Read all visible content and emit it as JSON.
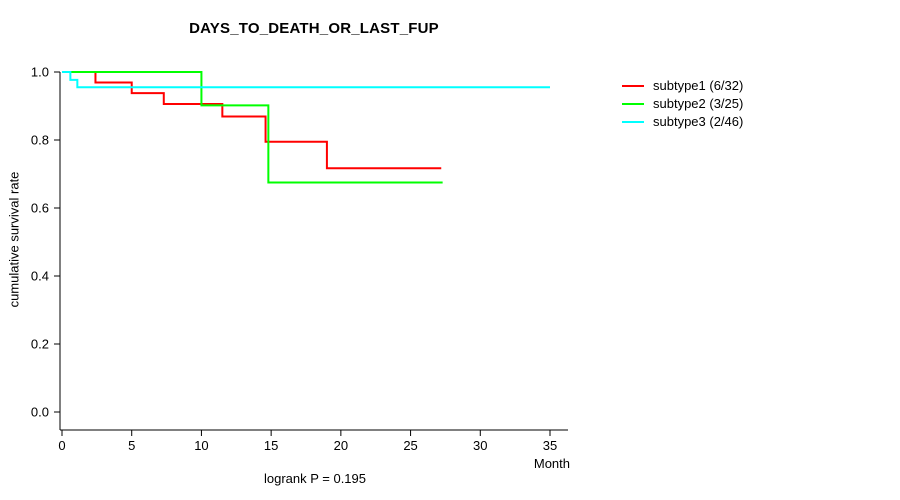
{
  "chart_data": {
    "type": "line",
    "chart_kind": "kaplan-meier-step",
    "title": "DAYS_TO_DEATH_OR_LAST_FUP",
    "ylabel": "cumulative survival rate",
    "xlabel": "Month",
    "footnote": "logrank P = 0.195",
    "xlim": [
      0,
      35
    ],
    "ylim": [
      0.0,
      1.0
    ],
    "grid": false,
    "legend_position": "right-outside",
    "x_ticks": [
      {
        "value": 0,
        "label": "0"
      },
      {
        "value": 5,
        "label": "5"
      },
      {
        "value": 10,
        "label": "10"
      },
      {
        "value": 15,
        "label": "15"
      },
      {
        "value": 20,
        "label": "20"
      },
      {
        "value": 25,
        "label": "25"
      },
      {
        "value": 30,
        "label": "30"
      },
      {
        "value": 35,
        "label": "35"
      }
    ],
    "y_ticks": [
      {
        "value": 0.0,
        "label": "0.0"
      },
      {
        "value": 0.2,
        "label": "0.2"
      },
      {
        "value": 0.4,
        "label": "0.4"
      },
      {
        "value": 0.6,
        "label": "0.6"
      },
      {
        "value": 0.8,
        "label": "0.8"
      },
      {
        "value": 1.0,
        "label": "1.0"
      }
    ],
    "series": [
      {
        "name": "subtype1 (6/32)",
        "color": "#ff0000",
        "points": [
          [
            0,
            1.0
          ],
          [
            2.4,
            0.969
          ],
          [
            5,
            0.938
          ],
          [
            7.3,
            0.906
          ],
          [
            11.5,
            0.869
          ],
          [
            14.6,
            0.795
          ],
          [
            19,
            0.717
          ]
        ],
        "end": 27.2
      },
      {
        "name": "subtype2 (3/25)",
        "color": "#00ff00",
        "points": [
          [
            0,
            1.0
          ],
          [
            10,
            0.902
          ],
          [
            14.8,
            0.675
          ]
        ],
        "end": 27.3
      },
      {
        "name": "subtype3 (2/46)",
        "color": "#00ffff",
        "points": [
          [
            0,
            1.0
          ],
          [
            0.6,
            0.977
          ],
          [
            1.1,
            0.955
          ]
        ],
        "end": 35
      }
    ],
    "legend": [
      {
        "label": "subtype1 (6/32)",
        "color": "#ff0000"
      },
      {
        "label": "subtype2 (3/25)",
        "color": "#00ff00"
      },
      {
        "label": "subtype3 (2/46)",
        "color": "#00ffff"
      }
    ]
  }
}
